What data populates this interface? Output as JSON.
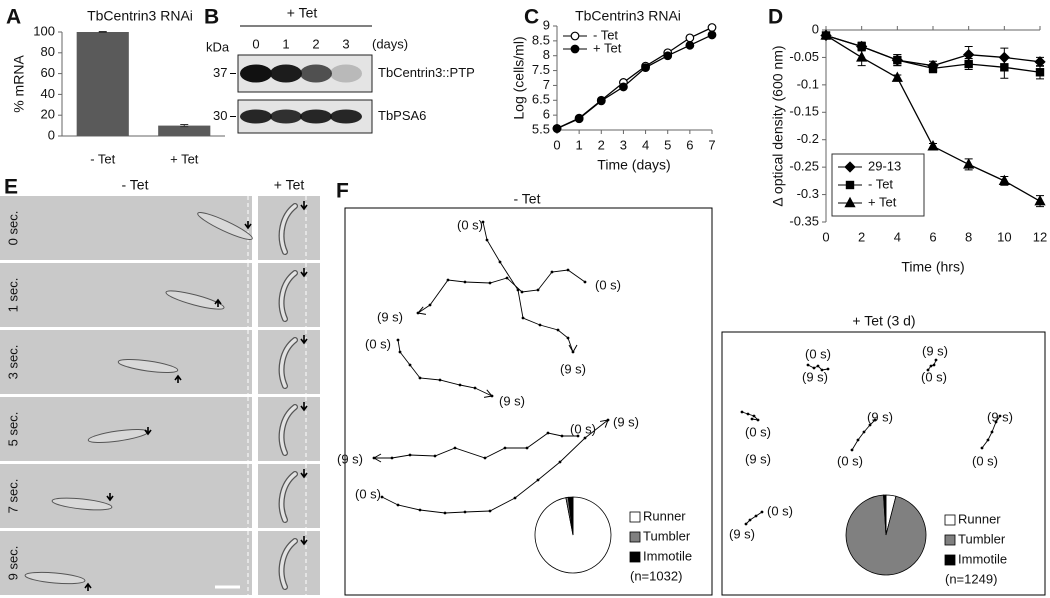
{
  "panel_labels": [
    "A",
    "B",
    "C",
    "D",
    "E",
    "F"
  ],
  "chart_data": [
    {
      "type": "bar",
      "title": "TbCentrin3 RNAi",
      "y_label": "% mRNA",
      "categories": [
        "- Tet",
        "+ Tet"
      ],
      "values": [
        100,
        10
      ],
      "errors": [
        0.5,
        1
      ],
      "color": "#5a5a5a",
      "ylim": [
        0,
        100
      ],
      "yticks": [
        0,
        20,
        40,
        60,
        80,
        100
      ]
    },
    {
      "type": "line",
      "title": "TbCentrin3 RNAi",
      "x_label": "Time (days)",
      "y_label": "Log (cells/ml)",
      "x": [
        0,
        1,
        2,
        3,
        4,
        5,
        6,
        7
      ],
      "xlim": [
        0,
        7
      ],
      "xticks": [
        0,
        1,
        2,
        3,
        4,
        5,
        6,
        7
      ],
      "ylim": [
        5.5,
        9
      ],
      "yticks": [
        5.5,
        6,
        6.5,
        7,
        7.5,
        8,
        8.5,
        9
      ],
      "legend": "upper left",
      "series": [
        {
          "name": "- Tet",
          "color": "#000000",
          "marker": "circle-open",
          "values": [
            5.55,
            5.9,
            6.5,
            7.1,
            7.65,
            8.1,
            8.6,
            8.95
          ]
        },
        {
          "name": "+ Tet",
          "color": "#000000",
          "marker": "circle",
          "values": [
            5.55,
            5.88,
            6.48,
            6.95,
            7.6,
            8.0,
            8.35,
            8.7
          ]
        }
      ]
    },
    {
      "type": "line",
      "x_label": "Time (hrs)",
      "y_label": "Δ optical density (600 nm)",
      "x": [
        0,
        2,
        4,
        6,
        8,
        10,
        12
      ],
      "xlim": [
        0,
        12
      ],
      "xticks": [
        0,
        2,
        4,
        6,
        8,
        10,
        12
      ],
      "ylim": [
        -0.35,
        0
      ],
      "yticks": [
        0,
        -0.05,
        -0.1,
        -0.15,
        -0.2,
        -0.25,
        -0.3,
        -0.35
      ],
      "legend": "lower left",
      "series": [
        {
          "name": "29-13",
          "color": "#000000",
          "marker": "diamond",
          "values": [
            -0.01,
            -0.03,
            -0.055,
            -0.065,
            -0.045,
            -0.05,
            -0.058
          ],
          "errors": [
            0.005,
            0.008,
            0.01,
            0.008,
            0.015,
            0.017,
            0.008
          ]
        },
        {
          "name": "- Tet",
          "color": "#000000",
          "marker": "square",
          "values": [
            -0.01,
            -0.03,
            -0.055,
            -0.07,
            -0.062,
            -0.068,
            -0.077
          ],
          "errors": [
            0.005,
            0.006,
            0.01,
            0.008,
            0.01,
            0.02,
            0.012
          ]
        },
        {
          "name": "+ Tet",
          "color": "#000000",
          "marker": "triangle",
          "values": [
            -0.01,
            -0.05,
            -0.087,
            -0.212,
            -0.245,
            -0.275,
            -0.312
          ],
          "errors": [
            0.005,
            0.015,
            0.005,
            0.005,
            0.01,
            0.008,
            0.01
          ]
        }
      ]
    },
    {
      "type": "pie",
      "categories": [
        "Runner",
        "Tumbler",
        "Immotile"
      ],
      "values": [
        97,
        1,
        2
      ],
      "colors": [
        "#ffffff",
        "#808080",
        "#000000"
      ],
      "sample_label": "(n=1032)"
    },
    {
      "type": "pie",
      "categories": [
        "Runner",
        "Tumbler",
        "Immotile"
      ],
      "values": [
        4,
        95,
        1
      ],
      "colors": [
        "#ffffff",
        "#808080",
        "#000000"
      ],
      "sample_label": "(n=1249)"
    }
  ],
  "blot": {
    "treatment": "+ Tet",
    "unit": "kDa",
    "lanes": [
      "0",
      "1",
      "2",
      "3"
    ],
    "lane_unit": "(days)",
    "markers": [
      "37",
      "30"
    ],
    "bands": [
      "TbCentrin3::PTP",
      "TbPSA6"
    ]
  },
  "timelapse": {
    "conditions": [
      "- Tet",
      "+ Tet"
    ],
    "times": [
      "0 sec.",
      "1 sec.",
      "3 sec.",
      "5 sec.",
      "7 sec.",
      "9 sec."
    ]
  },
  "tracks": [
    {
      "title": "- Tet",
      "labels": [
        "(0 s)",
        "(0 s)",
        "(9 s)",
        "(9 s)",
        "(0 s)",
        "(9 s)",
        "(0 s)",
        "(9 s)",
        "(9 s)",
        "(0 s)"
      ]
    },
    {
      "title": "+ Tet (3 d)",
      "labels": [
        "(0 s)",
        "(9 s)",
        "(9 s)",
        "(0 s)",
        "(0 s)",
        "(9 s)",
        "(9 s)",
        "(0 s)",
        "(9 s)",
        "(0 s)",
        "(0 s)",
        "(9 s)"
      ]
    }
  ]
}
